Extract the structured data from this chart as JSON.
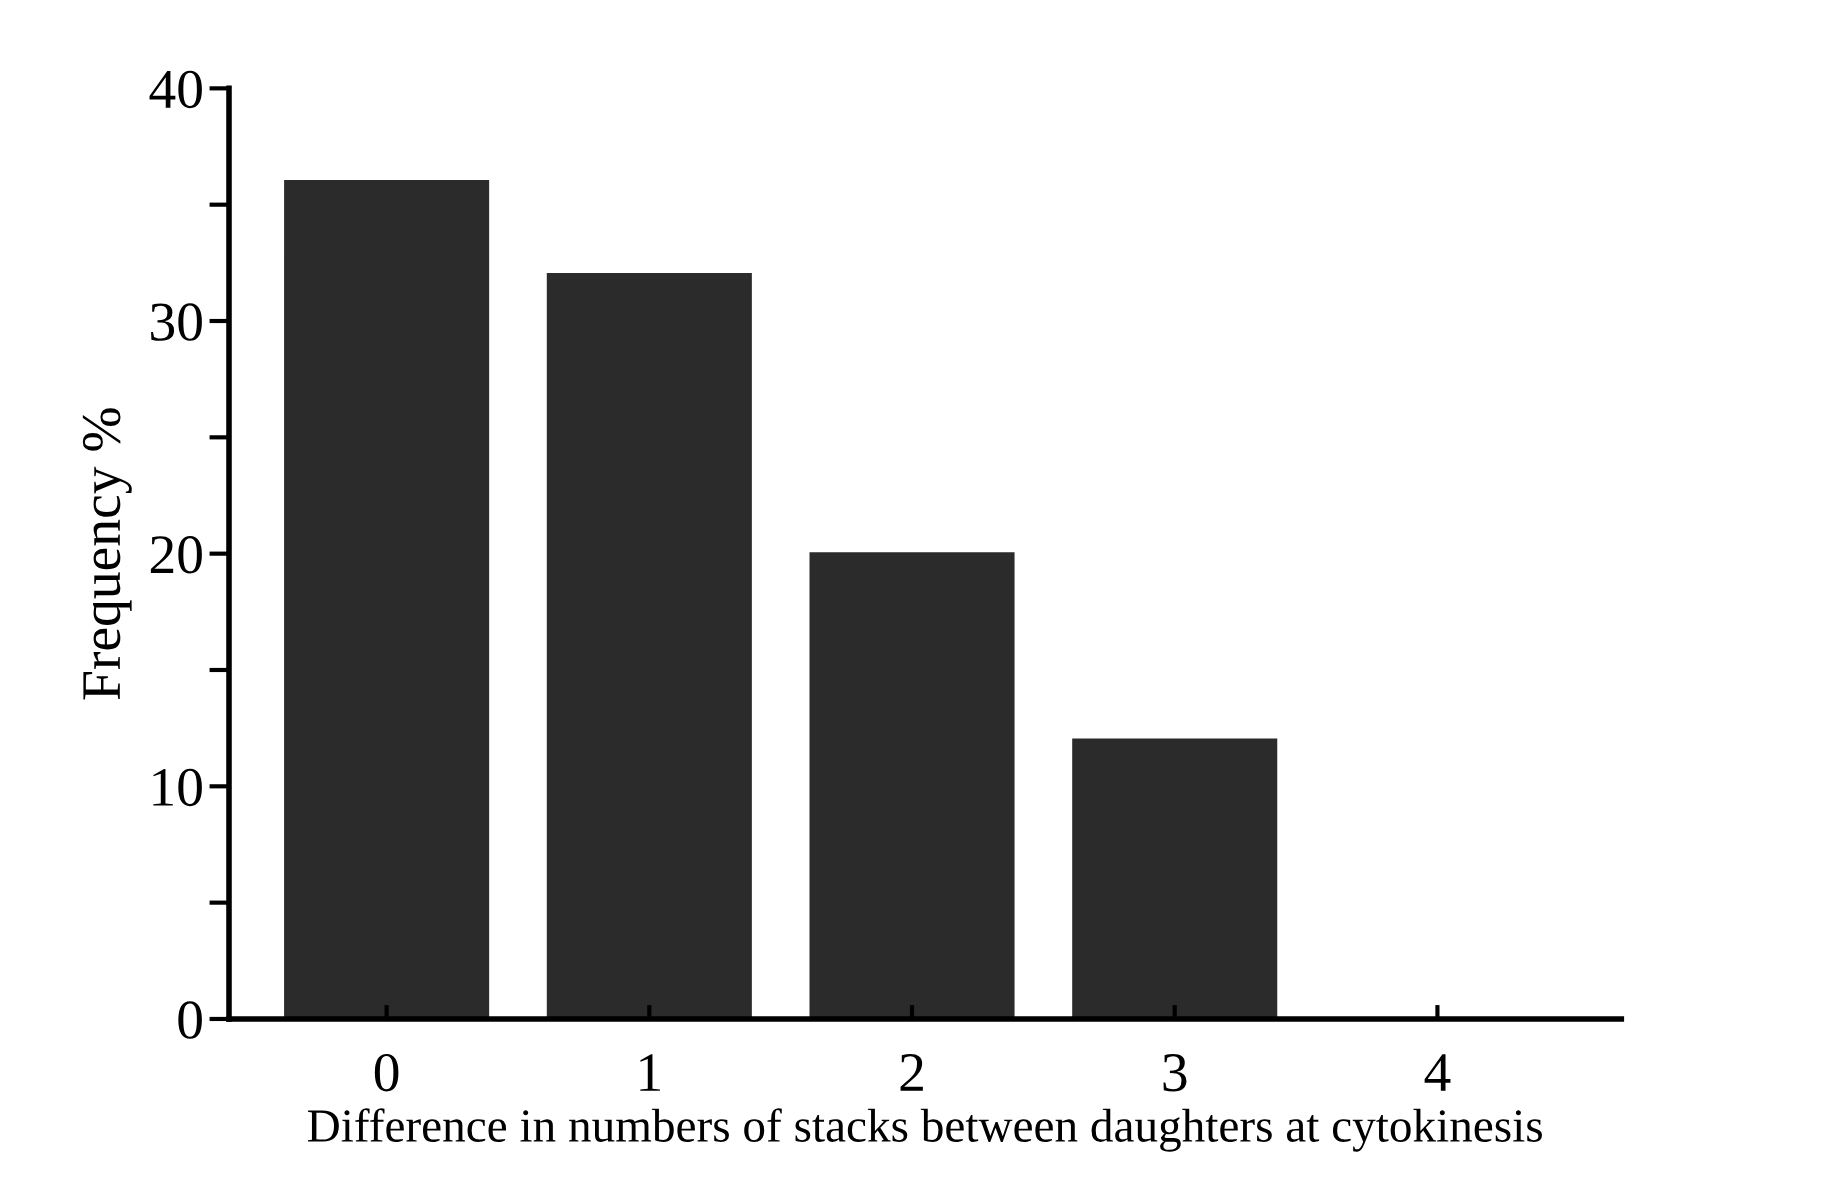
{
  "chart_data": {
    "type": "bar",
    "xlabel": "Difference in numbers of stacks between daughters at cytokinesis",
    "ylabel": "Frequency %",
    "categories": [
      "0",
      "1",
      "2",
      "3",
      "4"
    ],
    "values": [
      36,
      32,
      20,
      12,
      0
    ],
    "color": "#2b2b2b",
    "ylim": [
      0,
      40
    ],
    "yticks": [
      0,
      {
        "value": 5,
        "label": null
      },
      10,
      {
        "value": 15,
        "label": null
      },
      20,
      {
        "value": 25,
        "label": null
      },
      30,
      {
        "value": 35,
        "label": null
      },
      40
    ],
    "grid": false,
    "legend": false
  }
}
